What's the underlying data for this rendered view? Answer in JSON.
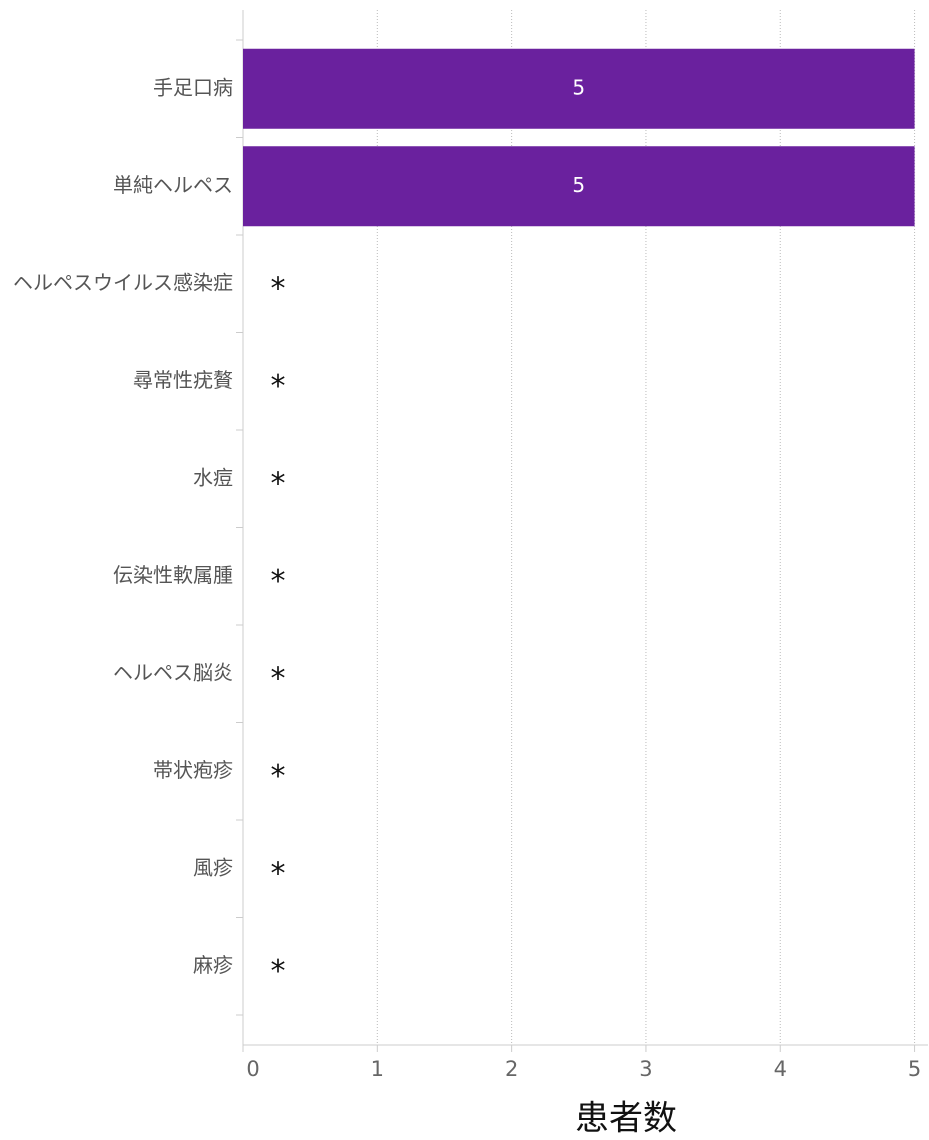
{
  "chart_data": {
    "type": "bar",
    "orientation": "horizontal",
    "categories": [
      "手足口病",
      "単純ヘルペス",
      "ヘルペスウイルス感染症",
      "尋常性疣贅",
      "水痘",
      "伝染性軟属腫",
      "ヘルペス脳炎",
      "帯状疱疹",
      "風疹",
      "麻疹"
    ],
    "values": [
      5,
      5,
      null,
      null,
      null,
      null,
      null,
      null,
      null,
      null
    ],
    "value_labels": [
      "5",
      "5",
      "*",
      "*",
      "*",
      "*",
      "*",
      "*",
      "*",
      "*"
    ],
    "color": "#6a219e",
    "xlabel": "患者数",
    "xlim": [
      0,
      5.1
    ],
    "xticks": [
      0,
      1,
      2,
      3,
      4,
      5
    ],
    "grid": true
  }
}
